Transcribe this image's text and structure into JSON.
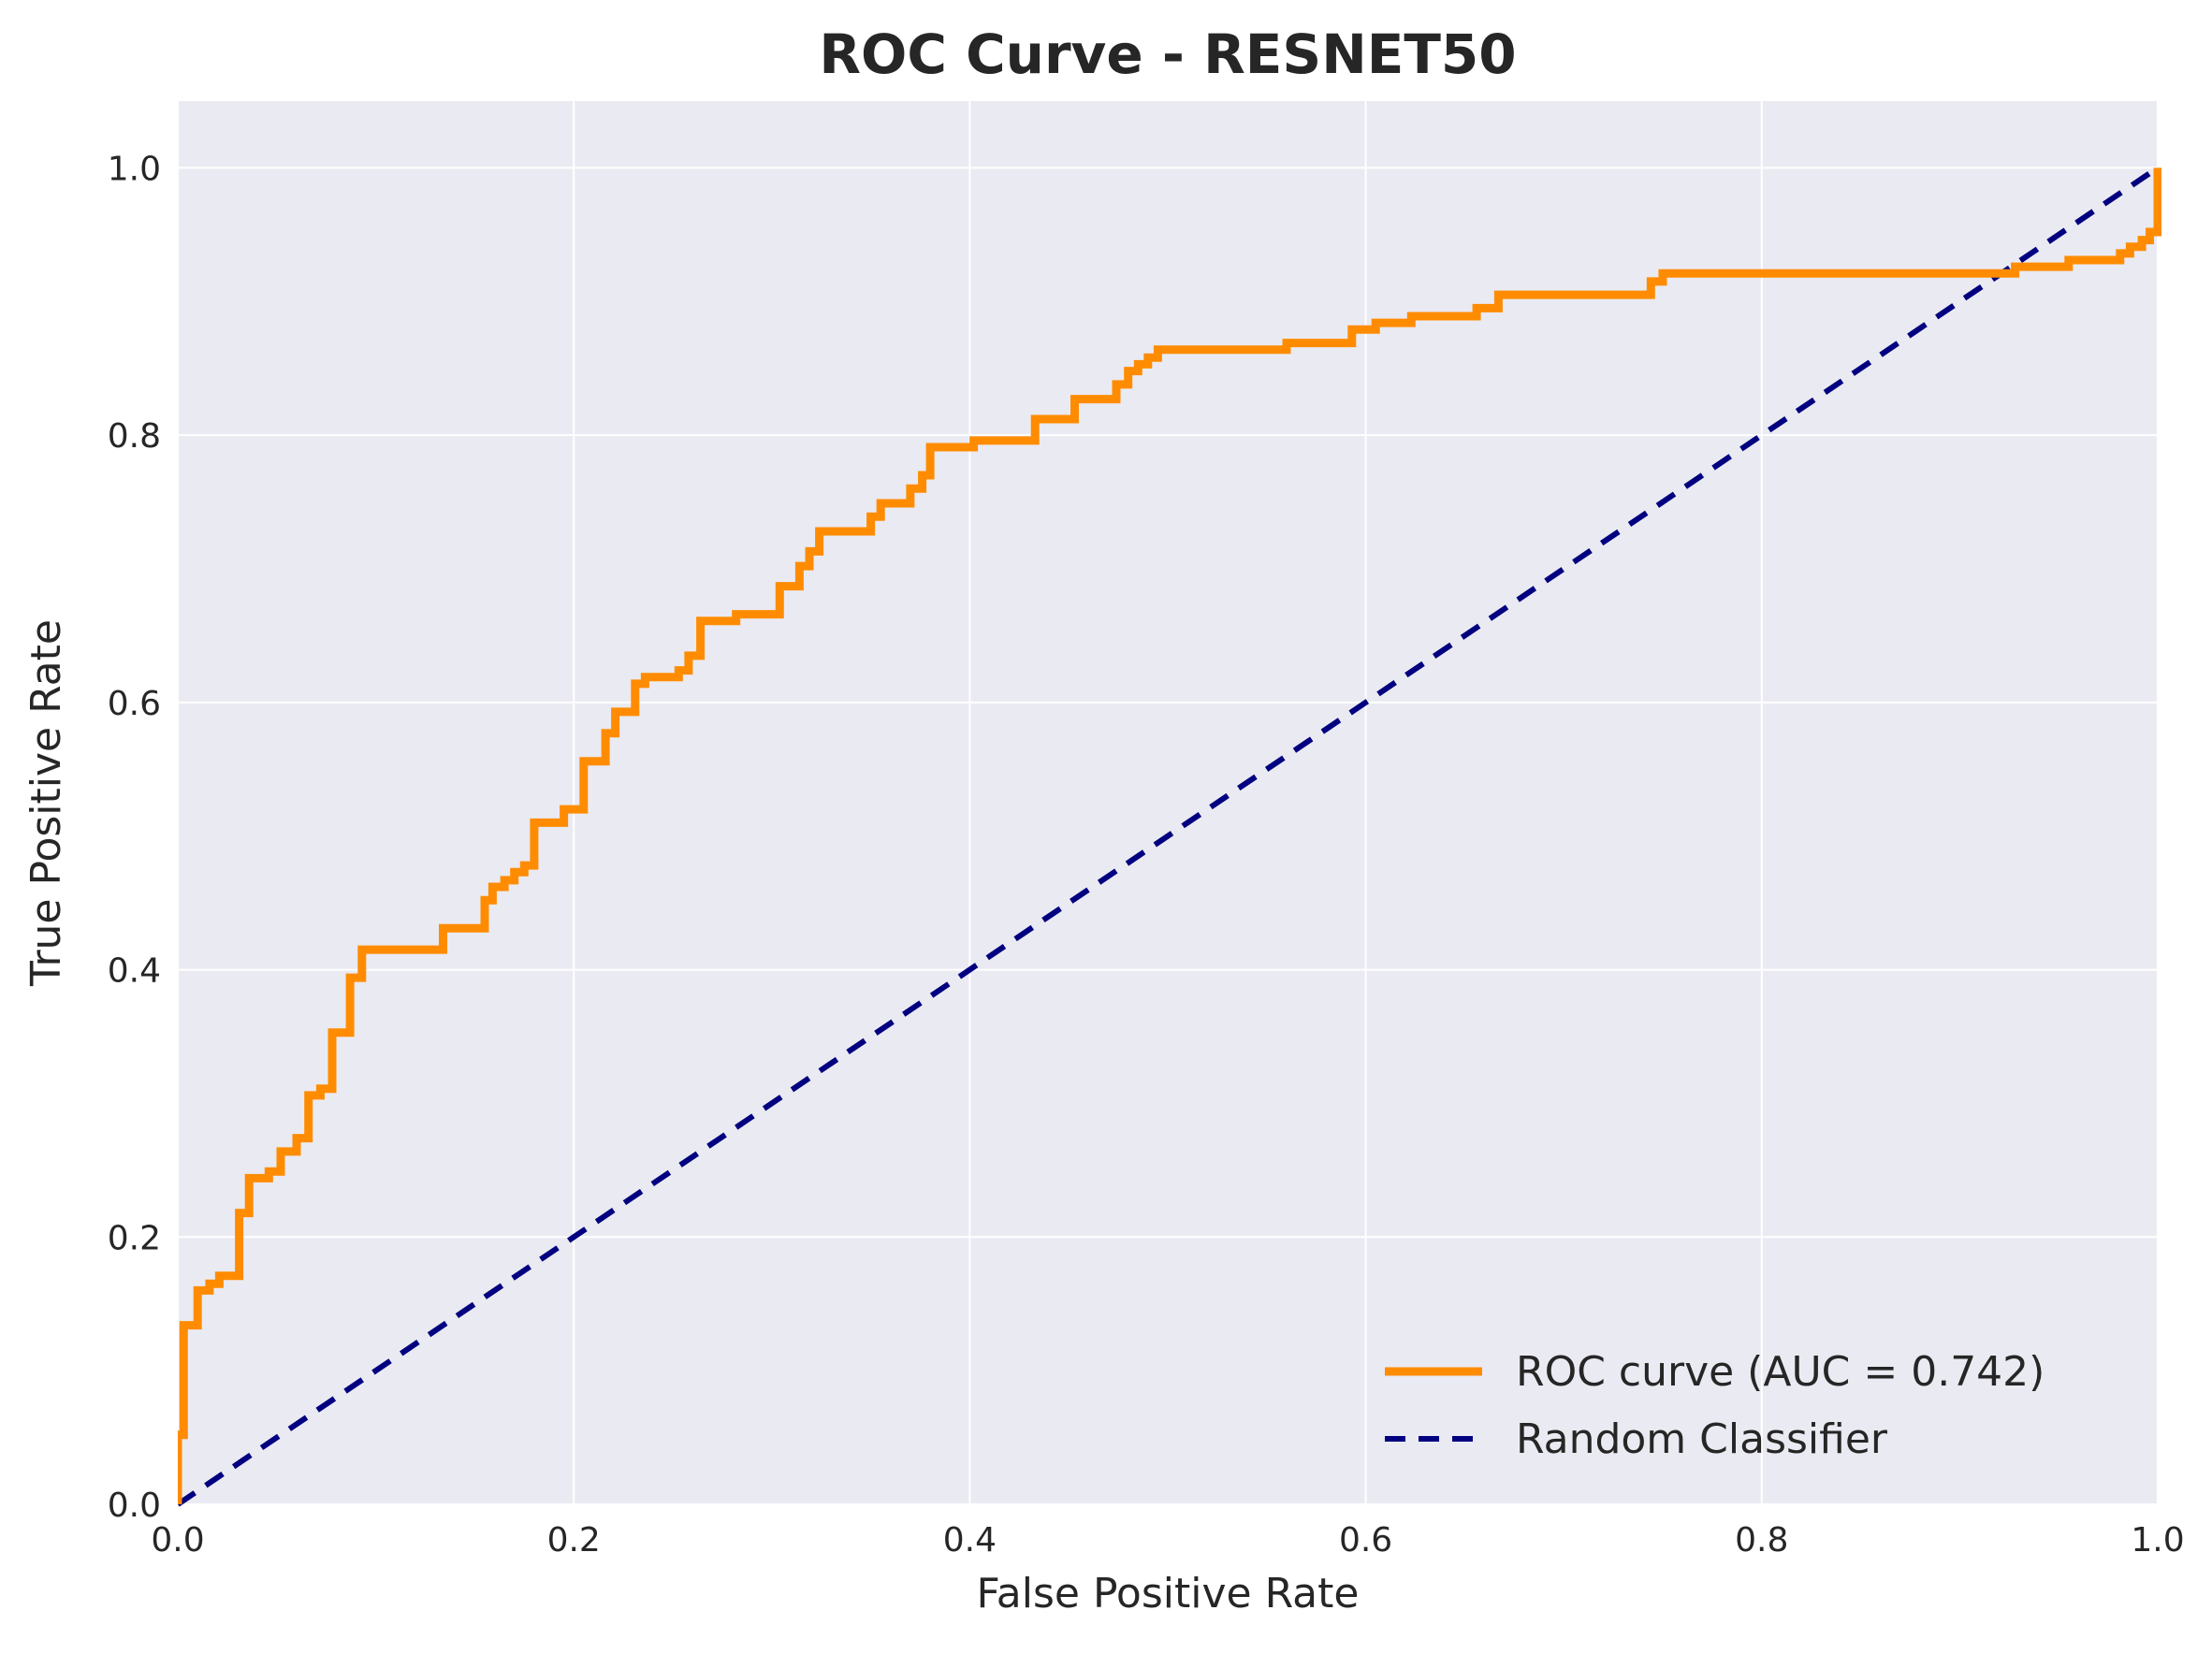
{
  "chart_data": {
    "type": "line",
    "title": "ROC Curve - RESNET50",
    "xlabel": "False Positive Rate",
    "ylabel": "True Positive Rate",
    "xlim": [
      0.0,
      1.0
    ],
    "ylim": [
      0.0,
      1.05
    ],
    "xticks": [
      "0.0",
      "0.2",
      "0.4",
      "0.6",
      "0.8",
      "1.0"
    ],
    "yticks": [
      "0.0",
      "0.2",
      "0.4",
      "0.6",
      "0.8",
      "1.0"
    ],
    "grid": true,
    "legend_position": "lower-right",
    "colors": {
      "background": "#eaeaf2",
      "grid": "#ffffff",
      "roc": "#ff8c00",
      "random": "#000080"
    },
    "series": [
      {
        "name": "ROC curve (AUC = 0.742)",
        "style": "solid",
        "x": [
          0.0,
          0.0,
          0.003,
          0.003,
          0.01,
          0.01,
          0.016,
          0.016,
          0.021,
          0.021,
          0.031,
          0.031,
          0.036,
          0.036,
          0.046,
          0.046,
          0.052,
          0.052,
          0.06,
          0.06,
          0.066,
          0.066,
          0.072,
          0.072,
          0.078,
          0.078,
          0.087,
          0.087,
          0.093,
          0.093,
          0.134,
          0.134,
          0.155,
          0.155,
          0.159,
          0.159,
          0.165,
          0.165,
          0.17,
          0.17,
          0.175,
          0.175,
          0.18,
          0.18,
          0.195,
          0.195,
          0.205,
          0.205,
          0.216,
          0.216,
          0.221,
          0.221,
          0.231,
          0.231,
          0.236,
          0.236,
          0.253,
          0.253,
          0.258,
          0.258,
          0.264,
          0.264,
          0.282,
          0.282,
          0.304,
          0.304,
          0.314,
          0.314,
          0.319,
          0.319,
          0.324,
          0.324,
          0.35,
          0.35,
          0.355,
          0.355,
          0.37,
          0.37,
          0.376,
          0.376,
          0.38,
          0.38,
          0.402,
          0.402,
          0.433,
          0.433,
          0.453,
          0.453,
          0.474,
          0.474,
          0.48,
          0.48,
          0.485,
          0.485,
          0.49,
          0.49,
          0.495,
          0.495,
          0.56,
          0.56,
          0.593,
          0.593,
          0.605,
          0.605,
          0.623,
          0.623,
          0.656,
          0.656,
          0.667,
          0.667,
          0.744,
          0.744,
          0.75,
          0.75,
          0.928,
          0.928,
          0.955,
          0.955,
          0.981,
          0.981,
          0.986,
          0.986,
          0.992,
          0.992,
          0.996,
          0.996,
          1.0,
          1.0
        ],
        "y": [
          0.0,
          0.052,
          0.052,
          0.134,
          0.134,
          0.16,
          0.16,
          0.165,
          0.165,
          0.171,
          0.171,
          0.218,
          0.218,
          0.244,
          0.244,
          0.249,
          0.249,
          0.264,
          0.264,
          0.274,
          0.274,
          0.306,
          0.306,
          0.311,
          0.311,
          0.353,
          0.353,
          0.394,
          0.394,
          0.415,
          0.415,
          0.431,
          0.431,
          0.452,
          0.452,
          0.462,
          0.462,
          0.467,
          0.467,
          0.473,
          0.473,
          0.478,
          0.478,
          0.51,
          0.51,
          0.52,
          0.52,
          0.556,
          0.556,
          0.577,
          0.577,
          0.593,
          0.593,
          0.614,
          0.614,
          0.619,
          0.619,
          0.624,
          0.624,
          0.635,
          0.635,
          0.661,
          0.661,
          0.666,
          0.666,
          0.687,
          0.687,
          0.702,
          0.702,
          0.713,
          0.713,
          0.728,
          0.728,
          0.739,
          0.739,
          0.749,
          0.749,
          0.76,
          0.76,
          0.77,
          0.77,
          0.791,
          0.791,
          0.796,
          0.796,
          0.812,
          0.812,
          0.827,
          0.827,
          0.838,
          0.838,
          0.848,
          0.848,
          0.853,
          0.853,
          0.858,
          0.858,
          0.864,
          0.864,
          0.869,
          0.869,
          0.879,
          0.879,
          0.884,
          0.884,
          0.889,
          0.889,
          0.895,
          0.895,
          0.905,
          0.905,
          0.915,
          0.915,
          0.921,
          0.921,
          0.926,
          0.926,
          0.931,
          0.931,
          0.936,
          0.936,
          0.941,
          0.941,
          0.946,
          0.946,
          0.952,
          0.952,
          1.0
        ]
      },
      {
        "name": "Random Classifier",
        "style": "dashed",
        "x": [
          0.0,
          1.0
        ],
        "y": [
          0.0,
          1.0
        ]
      }
    ]
  }
}
